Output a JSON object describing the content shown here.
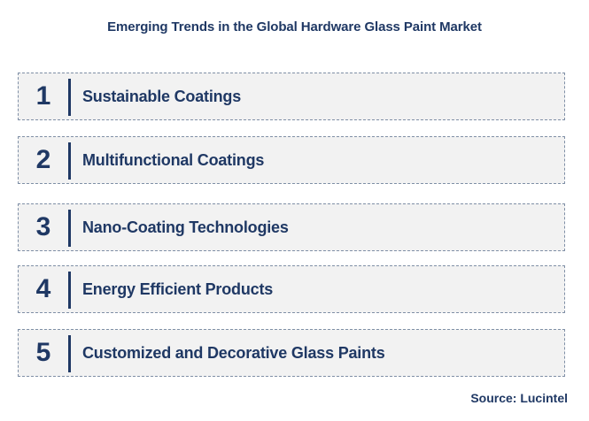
{
  "title": "Emerging Trends in the Global Hardware Glass Paint Market",
  "trends": [
    {
      "number": "1",
      "label": "Sustainable Coatings"
    },
    {
      "number": "2",
      "label": "Multifunctional Coatings"
    },
    {
      "number": "3",
      "label": "Nano-Coating Technologies"
    },
    {
      "number": "4",
      "label": "Energy Efficient Products"
    },
    {
      "number": "5",
      "label": "Customized and Decorative Glass Paints"
    }
  ],
  "source": "Source: Lucintel",
  "colors": {
    "text": "#1f3864",
    "box_fill": "#f2f2f2",
    "box_border": "#7f8fa6"
  }
}
